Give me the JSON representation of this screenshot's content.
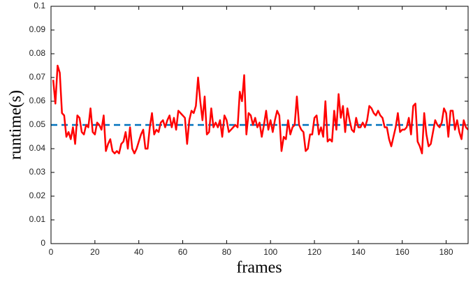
{
  "chart_data": {
    "type": "line",
    "xlabel": "frames",
    "ylabel": "runtime(s)",
    "xlim": [
      0,
      190
    ],
    "ylim": [
      0,
      0.1
    ],
    "xticks": [
      0,
      20,
      40,
      60,
      80,
      100,
      120,
      140,
      160,
      180
    ],
    "yticks": [
      0,
      0.01,
      0.02,
      0.03,
      0.04,
      0.05,
      0.06,
      0.07,
      0.08,
      0.09,
      0.1
    ],
    "x": [
      1,
      2,
      3,
      4,
      5,
      6,
      7,
      8,
      9,
      10,
      11,
      12,
      13,
      14,
      15,
      16,
      17,
      18,
      19,
      20,
      21,
      22,
      23,
      24,
      25,
      26,
      27,
      28,
      29,
      30,
      31,
      32,
      33,
      34,
      35,
      36,
      37,
      38,
      39,
      40,
      41,
      42,
      43,
      44,
      45,
      46,
      47,
      48,
      49,
      50,
      51,
      52,
      53,
      54,
      55,
      56,
      57,
      58,
      59,
      60,
      61,
      62,
      63,
      64,
      65,
      66,
      67,
      68,
      69,
      70,
      71,
      72,
      73,
      74,
      75,
      76,
      77,
      78,
      79,
      80,
      81,
      82,
      83,
      84,
      85,
      86,
      87,
      88,
      89,
      90,
      91,
      92,
      93,
      94,
      95,
      96,
      97,
      98,
      99,
      100,
      101,
      102,
      103,
      104,
      105,
      106,
      107,
      108,
      109,
      110,
      111,
      112,
      113,
      114,
      115,
      116,
      117,
      118,
      119,
      120,
      121,
      122,
      123,
      124,
      125,
      126,
      127,
      128,
      129,
      130,
      131,
      132,
      133,
      134,
      135,
      136,
      137,
      138,
      139,
      140,
      141,
      142,
      143,
      144,
      145,
      146,
      147,
      148,
      149,
      150,
      151,
      152,
      153,
      154,
      155,
      156,
      157,
      158,
      159,
      160,
      161,
      162,
      163,
      164,
      165,
      166,
      167,
      168,
      169,
      170,
      171,
      172,
      173,
      174,
      175,
      176,
      177,
      178,
      179,
      180,
      181,
      182,
      183,
      184,
      185,
      186,
      187,
      188,
      189,
      190
    ],
    "series": [
      {
        "color": "#ff0000",
        "values": [
          0.069,
          0.059,
          0.075,
          0.072,
          0.055,
          0.054,
          0.045,
          0.047,
          0.044,
          0.049,
          0.042,
          0.054,
          0.053,
          0.047,
          0.046,
          0.05,
          0.049,
          0.057,
          0.047,
          0.046,
          0.051,
          0.05,
          0.048,
          0.054,
          0.039,
          0.042,
          0.044,
          0.039,
          0.038,
          0.039,
          0.038,
          0.042,
          0.043,
          0.047,
          0.04,
          0.049,
          0.04,
          0.038,
          0.04,
          0.043,
          0.046,
          0.048,
          0.04,
          0.04,
          0.049,
          0.055,
          0.046,
          0.048,
          0.047,
          0.051,
          0.052,
          0.049,
          0.052,
          0.054,
          0.049,
          0.053,
          0.048,
          0.056,
          0.055,
          0.054,
          0.053,
          0.042,
          0.052,
          0.056,
          0.055,
          0.058,
          0.07,
          0.06,
          0.052,
          0.062,
          0.046,
          0.047,
          0.057,
          0.049,
          0.051,
          0.049,
          0.052,
          0.045,
          0.054,
          0.052,
          0.047,
          0.048,
          0.049,
          0.05,
          0.049,
          0.064,
          0.06,
          0.071,
          0.046,
          0.055,
          0.054,
          0.05,
          0.053,
          0.049,
          0.051,
          0.045,
          0.05,
          0.056,
          0.048,
          0.052,
          0.047,
          0.052,
          0.056,
          0.054,
          0.039,
          0.045,
          0.044,
          0.052,
          0.046,
          0.049,
          0.05,
          0.062,
          0.05,
          0.048,
          0.047,
          0.039,
          0.04,
          0.046,
          0.046,
          0.053,
          0.054,
          0.046,
          0.049,
          0.045,
          0.06,
          0.043,
          0.044,
          0.043,
          0.056,
          0.048,
          0.063,
          0.053,
          0.058,
          0.047,
          0.057,
          0.052,
          0.048,
          0.047,
          0.053,
          0.049,
          0.049,
          0.051,
          0.049,
          0.052,
          0.058,
          0.057,
          0.055,
          0.054,
          0.056,
          0.054,
          0.053,
          0.049,
          0.049,
          0.044,
          0.041,
          0.045,
          0.049,
          0.055,
          0.047,
          0.048,
          0.048,
          0.049,
          0.053,
          0.046,
          0.058,
          0.059,
          0.043,
          0.041,
          0.038,
          0.055,
          0.046,
          0.041,
          0.042,
          0.047,
          0.052,
          0.05,
          0.049,
          0.051,
          0.057,
          0.055,
          0.045,
          0.056,
          0.056,
          0.048,
          0.052,
          0.047,
          0.044,
          0.052,
          0.049,
          0.048
        ]
      }
    ],
    "reference_line": {
      "value": 0.05,
      "color": "#0072bd",
      "style": "dashed"
    }
  }
}
